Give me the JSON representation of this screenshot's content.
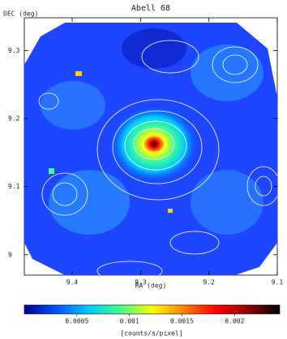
{
  "chart_data": {
    "type": "image",
    "title": "Abell 68",
    "x_label": "RA (deg)",
    "y_label": "DEC (deg)",
    "xlim": [
      9.47,
      9.1
    ],
    "xticks": [
      9.4,
      9.3,
      9.2,
      9.1
    ],
    "ylim": [
      8.97,
      9.348
    ],
    "yticks": [
      9,
      9.1,
      9.2,
      9.3
    ],
    "colorbar": {
      "label": "[counts/s/pixel]",
      "lim": [
        0,
        0.00243
      ],
      "ticks": [
        0.0005,
        0.001,
        0.0015,
        0.002
      ],
      "colormap": [
        "#00008c",
        "#0050ff",
        "#00c8ff",
        "#40ff90",
        "#ffff00",
        "#ff8000",
        "#ff0000",
        "#900000",
        "#000000"
      ]
    }
  }
}
